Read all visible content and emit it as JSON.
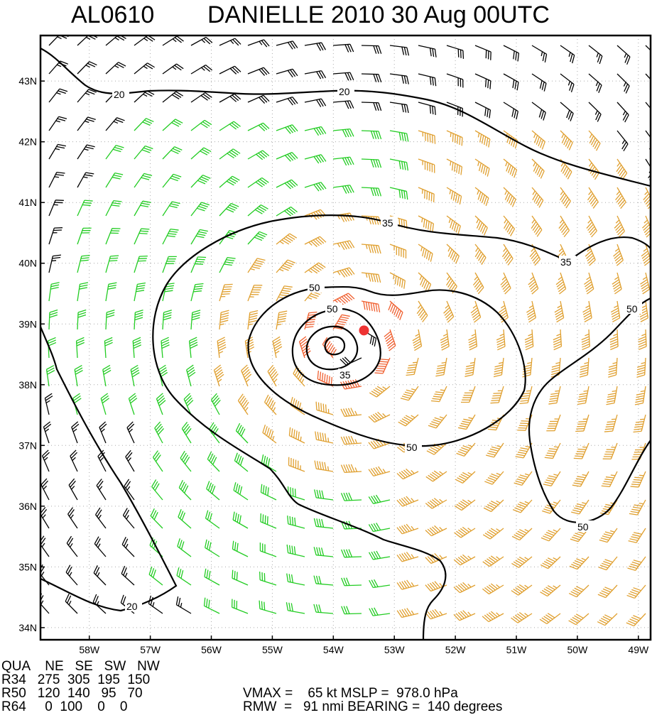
{
  "title": {
    "storm_id": "AL0610",
    "storm_name": "DANIELLE 2010 30 Aug 00UTC"
  },
  "map": {
    "lon_ticks": [
      "58W",
      "57W",
      "56W",
      "55W",
      "54W",
      "53W",
      "52W",
      "51W",
      "50W",
      "49W"
    ],
    "lat_ticks": [
      "43N",
      "42N",
      "41N",
      "40N",
      "39N",
      "38N",
      "37N",
      "36N",
      "35N",
      "34N"
    ],
    "lon_range": [
      -58.8,
      -48.8
    ],
    "lat_range": [
      33.8,
      43.75
    ],
    "storm_center": {
      "lon": -53.8,
      "lat": 38.8
    },
    "contour_labels": {
      "c20_top_left": "20",
      "c20_top_mid": "20",
      "c35_top": "35",
      "c35_right": "35",
      "c50_upper": "50",
      "c50_inner": "50",
      "c35_inner": "35",
      "c50_lower": "50",
      "c50_far_right": "50",
      "c50_bottom_right": "50",
      "c20_bottom_left": "20"
    },
    "colors": {
      "speed_below_34": "#000000",
      "speed_34_49": "#22cc22",
      "speed_50_63": "#e0a030",
      "speed_64_plus": "#f06030",
      "center_marker": "#ee3333"
    }
  },
  "info": {
    "row1": "QUA    NE   SE   SW   NW",
    "row2": "R34   275  305  195  150",
    "row3": "R50   120  140   95   70",
    "row3_right": "VMAX =    65 kt MSLP =  978.0 hPa",
    "row4": "R64     0  100    0    0",
    "row4_right": "RMW  =   91 nmi BEARING =  140 degrees"
  }
}
